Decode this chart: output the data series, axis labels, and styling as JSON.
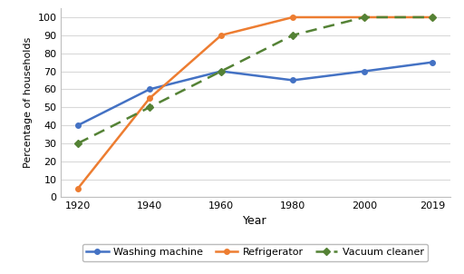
{
  "years": [
    1920,
    1940,
    1960,
    1980,
    2000,
    2019
  ],
  "washing_machine": [
    40,
    60,
    70,
    65,
    70,
    75
  ],
  "refrigerator": [
    5,
    55,
    90,
    100,
    100,
    100
  ],
  "vacuum_cleaner": [
    30,
    50,
    70,
    90,
    100,
    100
  ],
  "washing_machine_color": "#4472C4",
  "refrigerator_color": "#ED7D31",
  "vacuum_cleaner_color": "#548235",
  "ylabel": "Percentage of households",
  "xlabel": "Year",
  "ylim": [
    0,
    105
  ],
  "yticks": [
    0,
    10,
    20,
    30,
    40,
    50,
    60,
    70,
    80,
    90,
    100
  ],
  "xticks": [
    1920,
    1940,
    1960,
    1980,
    2000,
    2019
  ],
  "background_color": "#ffffff",
  "legend_labels": [
    "Washing machine",
    "Refrigerator",
    "Vacuum cleaner"
  ]
}
